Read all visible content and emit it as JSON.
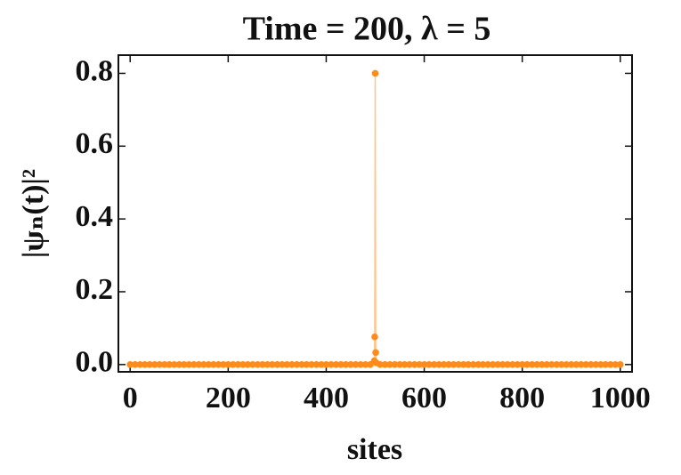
{
  "chart_data": {
    "type": "line",
    "title": "Time = 200, λ = 5",
    "x_label": "sites",
    "y_label": "|ψₙ(t)|²",
    "x": [
      0,
      10,
      20,
      30,
      40,
      50,
      60,
      70,
      80,
      90,
      100,
      110,
      120,
      130,
      140,
      150,
      160,
      170,
      180,
      190,
      200,
      210,
      220,
      230,
      240,
      250,
      260,
      270,
      280,
      290,
      300,
      310,
      320,
      330,
      340,
      350,
      360,
      370,
      380,
      390,
      400,
      410,
      420,
      430,
      440,
      450,
      460,
      470,
      480,
      490,
      498,
      499,
      500,
      501,
      502,
      510,
      520,
      530,
      540,
      550,
      560,
      570,
      580,
      590,
      600,
      610,
      620,
      630,
      640,
      650,
      660,
      670,
      680,
      690,
      700,
      710,
      720,
      730,
      740,
      750,
      760,
      770,
      780,
      790,
      800,
      810,
      820,
      830,
      840,
      850,
      860,
      870,
      880,
      890,
      900,
      910,
      920,
      930,
      940,
      950,
      960,
      970,
      980,
      990,
      1000
    ],
    "series": [
      {
        "color": "#ff8c1a",
        "values": [
          0,
          0,
          0,
          0,
          0,
          0,
          0,
          0,
          0,
          0,
          0,
          0,
          0,
          0,
          0,
          0,
          0,
          0,
          0,
          0,
          0,
          0,
          0,
          0,
          0,
          0,
          0,
          0,
          0,
          0,
          0,
          0,
          0,
          0,
          0,
          0,
          0,
          0,
          0,
          0,
          0,
          0,
          0,
          0,
          0,
          0,
          0,
          0,
          0,
          0,
          0.01,
          0.076,
          0.8,
          0.033,
          0.005,
          0,
          0,
          0,
          0,
          0,
          0,
          0,
          0,
          0,
          0,
          0,
          0,
          0,
          0,
          0,
          0,
          0,
          0,
          0,
          0,
          0,
          0,
          0,
          0,
          0,
          0,
          0,
          0,
          0,
          0,
          0,
          0,
          0,
          0,
          0,
          0,
          0,
          0,
          0,
          0,
          0,
          0,
          0,
          0,
          0,
          0,
          0,
          0,
          0,
          0
        ]
      }
    ],
    "xlim": [
      -24,
      1024
    ],
    "ylim": [
      -0.02,
      0.85
    ],
    "xticks": [
      0,
      200,
      400,
      600,
      800,
      1000
    ],
    "yticks": [
      {
        "value": 0,
        "label": "0.0"
      },
      0.2,
      0.4,
      0.6,
      0.8
    ]
  }
}
